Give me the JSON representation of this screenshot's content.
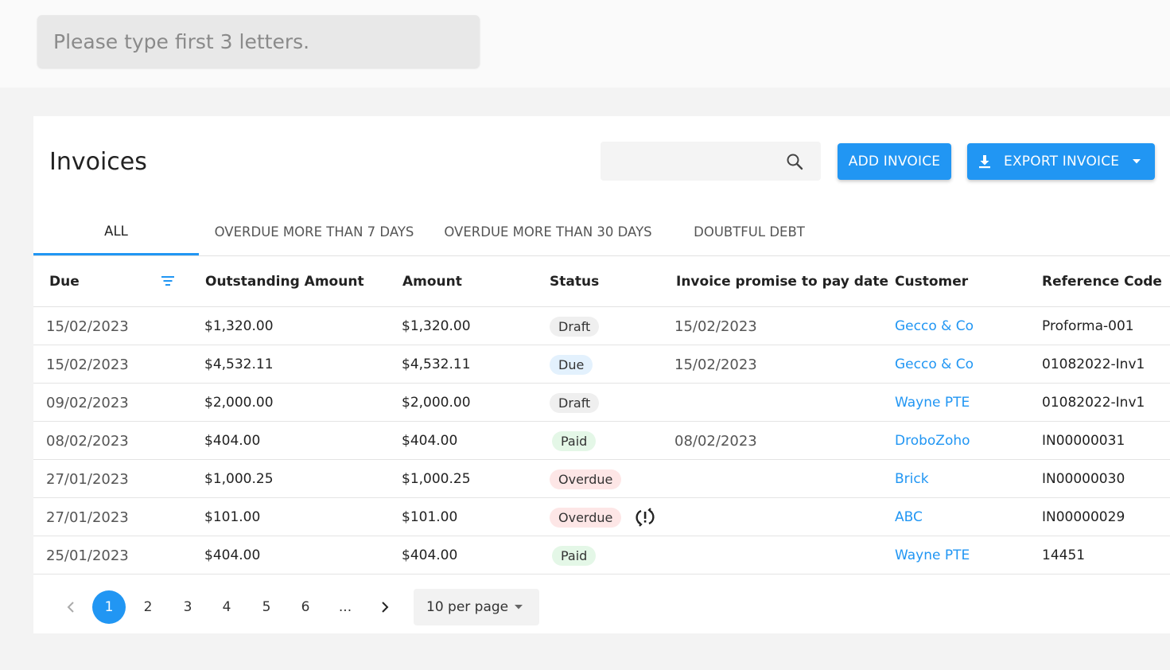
{
  "global_search": {
    "placeholder": "Please type first 3 letters."
  },
  "page": {
    "title": "Invoices",
    "search_placeholder": "",
    "add_button": "ADD INVOICE",
    "export_button": "EXPORT INVOICE"
  },
  "tabs": [
    {
      "label": "ALL",
      "active": true
    },
    {
      "label": "OVERDUE MORE THAN 7 DAYS",
      "active": false
    },
    {
      "label": "OVERDUE MORE THAN 30 DAYS",
      "active": false
    },
    {
      "label": "DOUBTFUL DEBT",
      "active": false
    }
  ],
  "table": {
    "headers": {
      "due": "Due",
      "outstanding": "Outstanding Amount",
      "amount": "Amount",
      "status": "Status",
      "promise": "Invoice promise to pay date",
      "customer": "Customer",
      "reference": "Reference Code"
    },
    "rows": [
      {
        "due": "15/02/2023",
        "outstanding": "$1,320.00",
        "amount": "$1,320.00",
        "status": "Draft",
        "promise": "15/02/2023",
        "customer": "Gecco & Co",
        "reference": "Proforma-001"
      },
      {
        "due": "15/02/2023",
        "outstanding": "$4,532.11",
        "amount": "$4,532.11",
        "status": "Due",
        "promise": "15/02/2023",
        "customer": "Gecco & Co",
        "reference": "01082022-Inv1"
      },
      {
        "due": "09/02/2023",
        "outstanding": "$2,000.00",
        "amount": "$2,000.00",
        "status": "Draft",
        "promise": "",
        "customer": "Wayne PTE",
        "reference": "01082022-Inv1"
      },
      {
        "due": "08/02/2023",
        "outstanding": "$404.00",
        "amount": "$404.00",
        "status": "Paid",
        "promise": "08/02/2023",
        "customer": "DroboZoho",
        "reference": "IN00000031"
      },
      {
        "due": "27/01/2023",
        "outstanding": "$1,000.25",
        "amount": "$1,000.25",
        "status": "Overdue",
        "promise": "",
        "customer": "Brick",
        "reference": "IN00000030"
      },
      {
        "due": "27/01/2023",
        "outstanding": "$101.00",
        "amount": "$101.00",
        "status": "Overdue",
        "promise": "",
        "customer": "ABC",
        "reference": "IN00000029"
      },
      {
        "due": "25/01/2023",
        "outstanding": "$404.00",
        "amount": "$404.00",
        "status": "Paid",
        "promise": "",
        "customer": "Wayne PTE",
        "reference": "14451"
      }
    ]
  },
  "pagination": {
    "pages": [
      "1",
      "2",
      "3",
      "4",
      "5",
      "6",
      "..."
    ],
    "current": "1",
    "per_page": "10 per page"
  },
  "colors": {
    "accent": "#2196f3",
    "paid_bg": "#e4f7e7",
    "overdue_bg": "#fde6e6",
    "due_bg": "#e3f1fd",
    "draft_bg": "#efefef"
  },
  "icons": [
    "search-icon",
    "download-icon",
    "chevron-down-icon",
    "sort-icon",
    "sync-alert-icon",
    "chevron-left-icon",
    "chevron-right-icon"
  ]
}
